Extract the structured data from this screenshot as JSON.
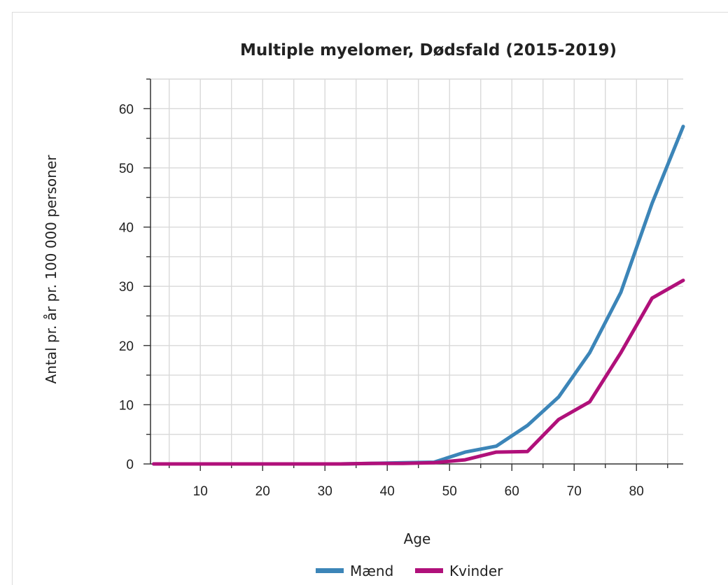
{
  "chart_data": {
    "type": "line",
    "title": "Multiple myelomer, Dødsfald (2015-2019)",
    "xlabel": "Age",
    "ylabel": "Antal pr. år pr. 100 000 personer",
    "xlim": [
      2,
      87.5
    ],
    "ylim": [
      0,
      65
    ],
    "x_ticks": [
      10,
      20,
      30,
      40,
      50,
      60,
      70,
      80
    ],
    "y_ticks": [
      0,
      10,
      20,
      30,
      40,
      50,
      60
    ],
    "grid": true,
    "legend_position": "bottom",
    "x": [
      2.5,
      7.5,
      12.5,
      17.5,
      22.5,
      27.5,
      32.5,
      37.5,
      42.5,
      47.5,
      52.5,
      57.5,
      62.5,
      67.5,
      72.5,
      77.5,
      82.5,
      87.5
    ],
    "series": [
      {
        "name": "Mænd",
        "color": "#3c85b8",
        "values": [
          0,
          0,
          0,
          0,
          0,
          0,
          0,
          0.1,
          0.2,
          0.3,
          2.0,
          3.0,
          6.5,
          11.3,
          18.8,
          29.0,
          44.0,
          57.0
        ]
      },
      {
        "name": "Kvinder",
        "color": "#b0107a",
        "values": [
          0,
          0,
          0,
          0,
          0,
          0,
          0,
          0.1,
          0.1,
          0.2,
          0.7,
          2.0,
          2.1,
          7.5,
          10.5,
          18.8,
          28.0,
          31.0
        ]
      }
    ]
  }
}
